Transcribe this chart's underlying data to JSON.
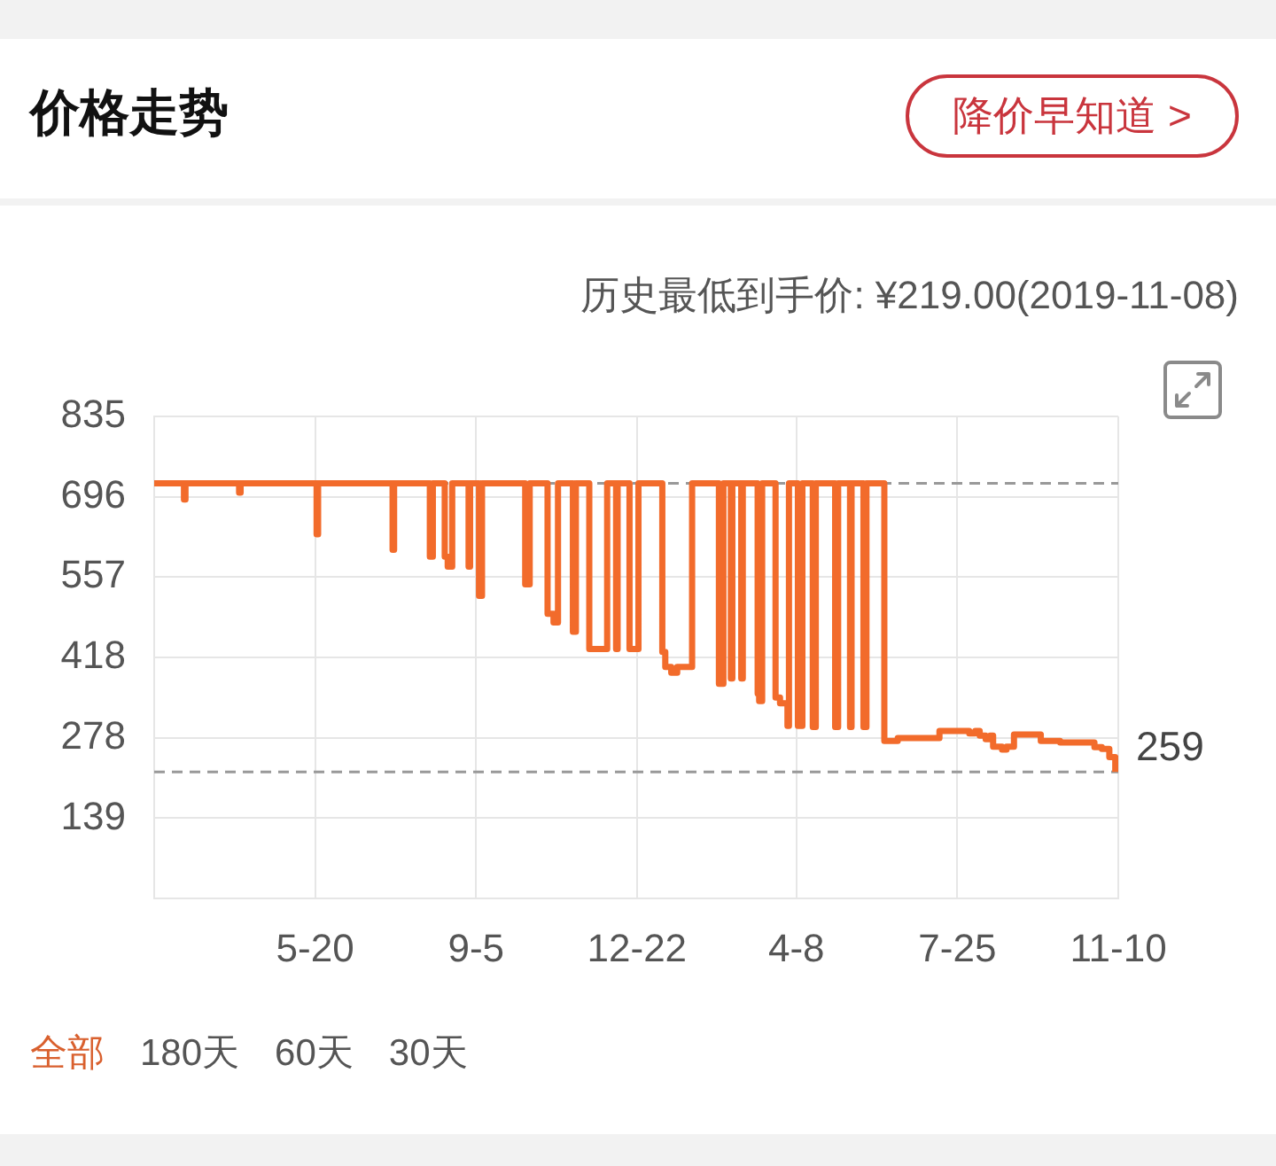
{
  "chart_data": {
    "type": "step",
    "title": "价格走势",
    "subtitle": "历史最低到手价: ¥219.00(2019-11-08)",
    "x": [
      "2018-02-01",
      "2018-02-21",
      "2018-02-22",
      "2018-03-30",
      "2018-03-31",
      "2018-05-21",
      "2018-05-22",
      "2018-07-11",
      "2018-07-12",
      "2018-08-05",
      "2018-08-07",
      "2018-08-15",
      "2018-08-17",
      "2018-08-20",
      "2018-08-31",
      "2018-09-01",
      "2018-09-07",
      "2018-09-09",
      "2018-10-08",
      "2018-10-11",
      "2018-10-23",
      "2018-10-27",
      "2018-10-30",
      "2018-11-09",
      "2018-11-11",
      "2018-11-20",
      "2018-12-02",
      "2018-12-08",
      "2018-12-09",
      "2018-12-17",
      "2018-12-23",
      "2019-01-08",
      "2019-01-10",
      "2019-01-14",
      "2019-01-18",
      "2019-01-28",
      "2019-02-15",
      "2019-02-18",
      "2019-02-23",
      "2019-02-24",
      "2019-03-02",
      "2019-03-03",
      "2019-03-13",
      "2019-03-14",
      "2019-03-16",
      "2019-03-25",
      "2019-03-28",
      "2019-04-02",
      "2019-04-03",
      "2019-04-09",
      "2019-04-12",
      "2019-04-19",
      "2019-04-21",
      "2019-05-04",
      "2019-05-06",
      "2019-05-14",
      "2019-05-15",
      "2019-05-23",
      "2019-05-25",
      "2019-06-06",
      "2019-06-15",
      "2019-07-13",
      "2019-08-02",
      "2019-08-06",
      "2019-08-09",
      "2019-08-13",
      "2019-08-16",
      "2019-08-18",
      "2019-08-24",
      "2019-08-27",
      "2019-09-01",
      "2019-09-19",
      "2019-10-02",
      "2019-10-25",
      "2019-10-30",
      "2019-11-04",
      "2019-11-08"
    ],
    "values": [
      719,
      691,
      719,
      703,
      719,
      631,
      719,
      604,
      719,
      592,
      719,
      592,
      575,
      719,
      575,
      719,
      524,
      719,
      544,
      719,
      493,
      478,
      719,
      462,
      719,
      432,
      719,
      432,
      719,
      432,
      719,
      427,
      401,
      391,
      401,
      719,
      372,
      719,
      381,
      719,
      381,
      719,
      355,
      342,
      719,
      348,
      338,
      299,
      719,
      299,
      719,
      297,
      719,
      297,
      719,
      297,
      719,
      297,
      719,
      273,
      278,
      290,
      286,
      290,
      282,
      276,
      282,
      263,
      258,
      263,
      284,
      273,
      270,
      262,
      259,
      245,
      219
    ],
    "color": "#f26b2b",
    "xlim": [
      "2018-02-01",
      "2019-11-10"
    ],
    "xticks": [
      {
        "value": "2018-05-20",
        "label": "5-20"
      },
      {
        "value": "2018-09-05",
        "label": "9-5"
      },
      {
        "value": "2018-12-22",
        "label": "12-22"
      },
      {
        "value": "2019-04-08",
        "label": "4-8"
      },
      {
        "value": "2019-07-25",
        "label": "7-25"
      },
      {
        "value": "2019-11-10",
        "label": "11-10"
      }
    ],
    "ylim": [
      0,
      835
    ],
    "yticks": [
      139,
      278,
      418,
      557,
      696,
      835
    ],
    "grid": true,
    "ref_lines": [
      {
        "axis": "y",
        "value": 719,
        "color": "#999999",
        "line_style": "dashed"
      },
      {
        "axis": "y",
        "value": 219,
        "color": "#999999",
        "line_style": "dashed"
      }
    ],
    "annotations": [
      "降价早知道 >",
      "全部",
      "180天",
      "60天",
      "30天",
      {
        "text": "259",
        "x": "2019-11-10",
        "y": 259
      }
    ]
  }
}
